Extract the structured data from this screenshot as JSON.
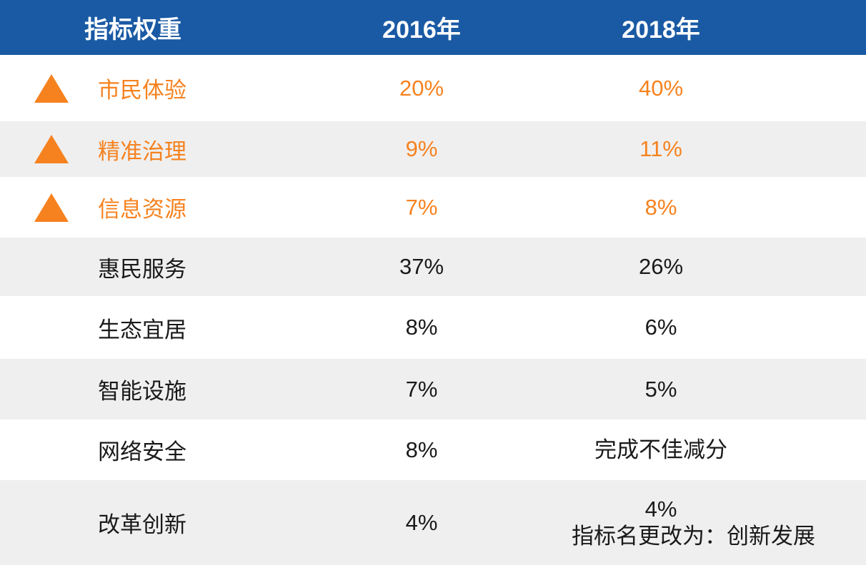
{
  "colors": {
    "header_bg": "#1A5AA4",
    "header_text": "#FFFFFF",
    "highlight_orange": "#F6821F",
    "stripe_gray": "#EFEFEF",
    "body_text": "#1A1A1A"
  },
  "table": {
    "headers": [
      "指标权重",
      "2016年",
      "2018年"
    ],
    "rows": [
      {
        "name": "市民体验",
        "y2016": "20%",
        "y2018": "40%",
        "highlighted": true,
        "marker": "up-triangle"
      },
      {
        "name": "精准治理",
        "y2016": "9%",
        "y2018": "11%",
        "highlighted": true,
        "marker": "up-triangle"
      },
      {
        "name": "信息资源",
        "y2016": "7%",
        "y2018": "8%",
        "highlighted": true,
        "marker": "up-triangle"
      },
      {
        "name": "惠民服务",
        "y2016": "37%",
        "y2018": "26%",
        "highlighted": false,
        "marker": ""
      },
      {
        "name": "生态宜居",
        "y2016": "8%",
        "y2018": "6%",
        "highlighted": false,
        "marker": ""
      },
      {
        "name": "智能设施",
        "y2016": "7%",
        "y2018": "5%",
        "highlighted": false,
        "marker": ""
      },
      {
        "name": "网络安全",
        "y2016": "8%",
        "y2018": "完成不佳减分",
        "highlighted": false,
        "marker": ""
      },
      {
        "name": "改革创新",
        "y2016": "4%",
        "y2018": "4%",
        "y2018_note": "指标名更改为：创新发展",
        "highlighted": false,
        "marker": ""
      }
    ]
  },
  "chart_data": {
    "type": "table",
    "title": "指标权重",
    "columns": [
      "指标权重",
      "2016年",
      "2018年"
    ],
    "rows": [
      [
        "市民体验",
        "20%",
        "40%"
      ],
      [
        "精准治理",
        "9%",
        "11%"
      ],
      [
        "信息资源",
        "7%",
        "8%"
      ],
      [
        "惠民服务",
        "37%",
        "26%"
      ],
      [
        "生态宜居",
        "8%",
        "6%"
      ],
      [
        "智能设施",
        "7%",
        "5%"
      ],
      [
        "网络安全",
        "8%",
        "完成不佳减分"
      ],
      [
        "改革创新",
        "4%",
        "4% 指标名更改为：创新发展"
      ]
    ],
    "highlighted_rows": [
      "市民体验",
      "精准治理",
      "信息资源"
    ],
    "notes": "前三行为橙色高亮并带上升三角标记；行背景白灰交替"
  }
}
